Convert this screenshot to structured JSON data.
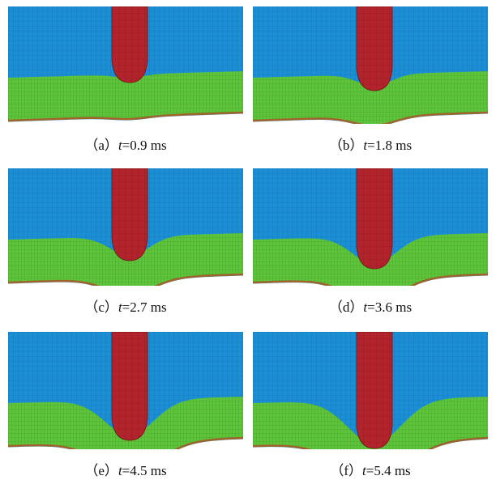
{
  "panels": [
    {
      "label": "（a）",
      "variable": "t",
      "rest": "=0.9 ms"
    },
    {
      "label": "（b）",
      "variable": "t",
      "rest": "=1.8 ms"
    },
    {
      "label": "（c）",
      "variable": "t",
      "rest": "=2.7 ms"
    },
    {
      "label": "（d）",
      "variable": "t",
      "rest": "=3.6 ms"
    },
    {
      "label": "（e）",
      "variable": "t",
      "rest": "=4.5 ms"
    },
    {
      "label": "（f）",
      "variable": "t",
      "rest": "=5.4 ms"
    }
  ]
}
